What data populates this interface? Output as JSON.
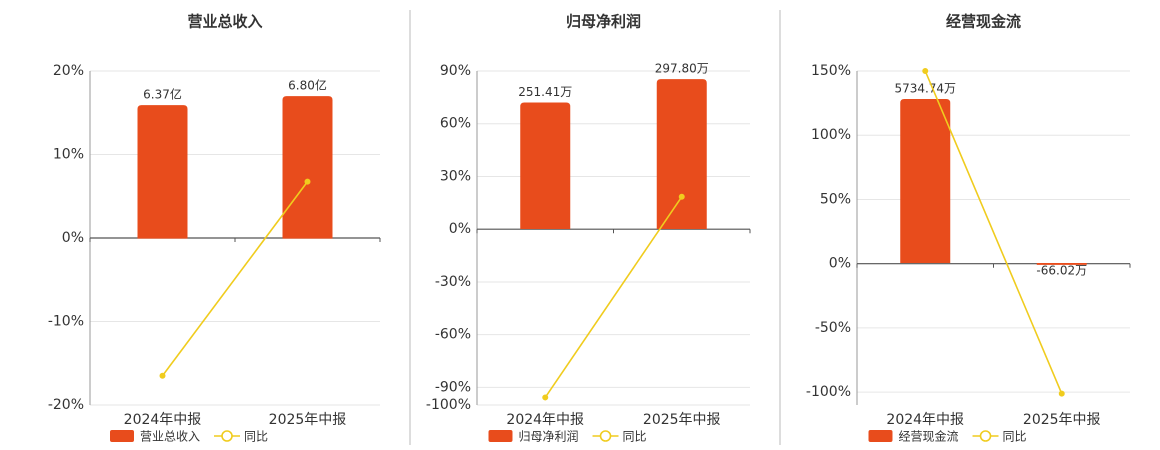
{
  "chart_data": [
    {
      "type": "bar",
      "title": "营业总收入",
      "categories": [
        "2024年中报",
        "2025年中报"
      ],
      "series": [
        {
          "name": "营业总收入",
          "type": "bar",
          "axis": "y2",
          "color": "#e84c1c",
          "values": [
            6.37,
            6.8
          ],
          "value_labels": [
            "6.37亿",
            "6.80亿"
          ]
        },
        {
          "name": "同比",
          "type": "line",
          "color": "#f0cc1e",
          "values": [
            -16.5,
            6.75
          ]
        }
      ],
      "ylim": [
        -20,
        20
      ],
      "yticks": [
        {
          "value": 20,
          "label": "20%"
        },
        {
          "value": 10,
          "label": "10%"
        },
        {
          "value": 0,
          "label": "0%"
        },
        {
          "value": -10,
          "label": "-10%"
        },
        {
          "value": -20,
          "label": "-20%"
        }
      ],
      "y2lim": [
        -7.94,
        8
      ],
      "grid": true
    },
    {
      "type": "bar",
      "title": "归母净利润",
      "categories": [
        "2024年中报",
        "2025年中报"
      ],
      "series": [
        {
          "name": "归母净利润",
          "type": "bar",
          "axis": "y2",
          "color": "#e84c1c",
          "values": [
            251.41,
            297.8
          ],
          "value_labels": [
            "251.41万",
            "297.80万"
          ]
        },
        {
          "name": "同比",
          "type": "line",
          "color": "#f0cc1e",
          "values": [
            -95.7,
            18.45
          ]
        }
      ],
      "ylim": [
        -100,
        90
      ],
      "yticks": [
        {
          "value": 90,
          "label": "90%"
        },
        {
          "value": 60,
          "label": "60%"
        },
        {
          "value": 30,
          "label": "30%"
        },
        {
          "value": 0,
          "label": "0%"
        },
        {
          "value": -30,
          "label": "-30%"
        },
        {
          "value": -60,
          "label": "-60%"
        },
        {
          "value": -90,
          "label": "-90%"
        },
        {
          "value": -100,
          "label": "-100%"
        }
      ],
      "y2lim": [
        -350,
        314
      ],
      "grid": true
    },
    {
      "type": "bar",
      "title": "经营现金流",
      "categories": [
        "2024年中报",
        "2025年中报"
      ],
      "series": [
        {
          "name": "经营现金流",
          "type": "bar",
          "axis": "y2",
          "color": "#e84c1c",
          "values": [
            5734.74,
            -66.02
          ],
          "value_labels": [
            "5734.74万",
            "-66.02万"
          ]
        },
        {
          "name": "同比",
          "type": "line",
          "color": "#f0cc1e",
          "values": [
            150,
            -101.15
          ]
        }
      ],
      "ylim": [
        -110,
        150
      ],
      "yticks": [
        {
          "value": 150,
          "label": "150%"
        },
        {
          "value": 100,
          "label": "100%"
        },
        {
          "value": 50,
          "label": "50%"
        },
        {
          "value": 0,
          "label": "0%"
        },
        {
          "value": -50,
          "label": "-50%"
        },
        {
          "value": -100,
          "label": "-100%"
        }
      ],
      "y2lim": [
        -4965,
        6713
      ],
      "grid": true
    }
  ]
}
